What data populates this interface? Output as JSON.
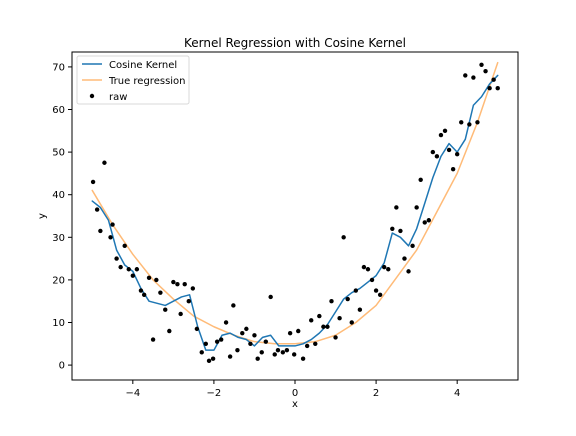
{
  "chart_data": {
    "type": "line",
    "title": "Kernel Regression with Cosine Kernel",
    "xlabel": "x",
    "ylabel": "y",
    "xlim": [
      -5.5,
      5.5
    ],
    "ylim": [
      -3.5,
      73.5
    ],
    "xticks": [
      -4,
      -2,
      0,
      2,
      4
    ],
    "xtick_labels": [
      "−4",
      "−2",
      "0",
      "2",
      "4"
    ],
    "yticks": [
      0,
      10,
      20,
      30,
      40,
      50,
      60,
      70
    ],
    "ytick_labels": [
      "0",
      "10",
      "20",
      "30",
      "40",
      "50",
      "60",
      "70"
    ],
    "grid": false,
    "legend_position": "top-left",
    "series": [
      {
        "name": "Cosine Kernel",
        "type": "line",
        "color": "#1f77b4",
        "x": [
          -5.0,
          -4.8,
          -4.6,
          -4.4,
          -4.2,
          -4.0,
          -3.8,
          -3.6,
          -3.4,
          -3.2,
          -3.0,
          -2.8,
          -2.6,
          -2.4,
          -2.2,
          -2.0,
          -1.8,
          -1.6,
          -1.4,
          -1.2,
          -1.0,
          -0.8,
          -0.6,
          -0.4,
          -0.2,
          0.0,
          0.2,
          0.4,
          0.6,
          0.8,
          1.0,
          1.2,
          1.4,
          1.6,
          1.8,
          2.0,
          2.2,
          2.4,
          2.6,
          2.8,
          3.0,
          3.2,
          3.4,
          3.6,
          3.8,
          4.0,
          4.2,
          4.4,
          4.6,
          4.8,
          5.0
        ],
        "y": [
          38.5,
          37.0,
          34.0,
          27.0,
          23.5,
          22.0,
          18.0,
          15.0,
          14.5,
          14.0,
          15.0,
          16.0,
          16.5,
          9.0,
          3.5,
          3.5,
          7.0,
          7.5,
          6.5,
          6.0,
          4.5,
          6.5,
          7.0,
          4.5,
          4.5,
          4.5,
          5.0,
          6.0,
          7.5,
          9.5,
          12.5,
          15.5,
          17.0,
          18.0,
          19.5,
          21.0,
          24.0,
          31.0,
          30.0,
          28.0,
          32.0,
          38.0,
          44.0,
          49.0,
          52.0,
          50.0,
          53.0,
          61.0,
          63.0,
          66.0,
          68.0
        ]
      },
      {
        "name": "True regression",
        "type": "line",
        "color": "#ffbb78",
        "x": [
          -5.0,
          -4.5,
          -4.0,
          -3.5,
          -3.0,
          -2.5,
          -2.0,
          -1.5,
          -1.0,
          -0.5,
          0.0,
          0.5,
          1.0,
          1.5,
          2.0,
          2.5,
          3.0,
          3.5,
          4.0,
          4.5,
          5.0
        ],
        "y": [
          41.0,
          33.0,
          26.0,
          20.0,
          15.5,
          11.5,
          9.0,
          7.0,
          5.5,
          5.0,
          5.0,
          5.5,
          7.0,
          10.0,
          14.0,
          20.5,
          27.0,
          36.0,
          45.0,
          57.0,
          71.0
        ]
      },
      {
        "name": "raw",
        "type": "scatter",
        "color": "#000000",
        "x": [
          -4.98,
          -4.88,
          -4.8,
          -4.7,
          -4.55,
          -4.5,
          -4.4,
          -4.3,
          -4.2,
          -4.1,
          -4.0,
          -3.9,
          -3.8,
          -3.72,
          -3.6,
          -3.5,
          -3.42,
          -3.32,
          -3.2,
          -3.1,
          -3.0,
          -2.9,
          -2.82,
          -2.72,
          -2.62,
          -2.52,
          -2.42,
          -2.3,
          -2.2,
          -2.12,
          -2.02,
          -1.92,
          -1.82,
          -1.7,
          -1.6,
          -1.52,
          -1.42,
          -1.3,
          -1.2,
          -1.1,
          -1.0,
          -0.92,
          -0.82,
          -0.72,
          -0.6,
          -0.5,
          -0.42,
          -0.3,
          -0.2,
          -0.12,
          -0.02,
          0.08,
          0.2,
          0.3,
          0.4,
          0.5,
          0.6,
          0.7,
          0.8,
          0.9,
          1.0,
          1.1,
          1.2,
          1.3,
          1.4,
          1.5,
          1.6,
          1.7,
          1.8,
          1.9,
          2.0,
          2.1,
          2.2,
          2.3,
          2.4,
          2.5,
          2.6,
          2.7,
          2.8,
          2.9,
          3.0,
          3.1,
          3.2,
          3.3,
          3.4,
          3.5,
          3.6,
          3.7,
          3.8,
          3.9,
          4.0,
          4.1,
          4.2,
          4.3,
          4.4,
          4.5,
          4.6,
          4.7,
          4.8,
          4.9,
          5.0
        ],
        "y": [
          43.0,
          36.5,
          31.5,
          47.5,
          30.0,
          33.0,
          25.0,
          23.0,
          28.0,
          22.5,
          21.0,
          22.5,
          17.5,
          16.5,
          20.5,
          6.0,
          20.0,
          17.0,
          13.0,
          8.0,
          19.5,
          19.0,
          12.0,
          19.0,
          15.0,
          18.0,
          8.5,
          3.0,
          5.0,
          1.0,
          1.5,
          5.5,
          6.0,
          10.0,
          2.0,
          14.0,
          3.5,
          7.5,
          8.5,
          5.0,
          7.0,
          1.5,
          3.0,
          5.5,
          16.0,
          2.5,
          3.5,
          3.0,
          3.5,
          7.5,
          2.5,
          8.0,
          1.5,
          4.5,
          10.5,
          5.0,
          11.5,
          9.0,
          9.0,
          15.0,
          6.5,
          11.0,
          30.0,
          15.5,
          10.0,
          17.5,
          13.0,
          23.0,
          22.5,
          20.0,
          17.5,
          16.5,
          23.0,
          22.5,
          32.0,
          37.0,
          31.5,
          25.0,
          22.0,
          28.0,
          37.0,
          43.5,
          33.5,
          34.0,
          50.0,
          49.0,
          54.0,
          55.0,
          50.5,
          46.0,
          49.5,
          57.0,
          68.0,
          56.5,
          67.5,
          57.0,
          70.5,
          69.0,
          65.0,
          67.0,
          65.0
        ]
      }
    ]
  }
}
